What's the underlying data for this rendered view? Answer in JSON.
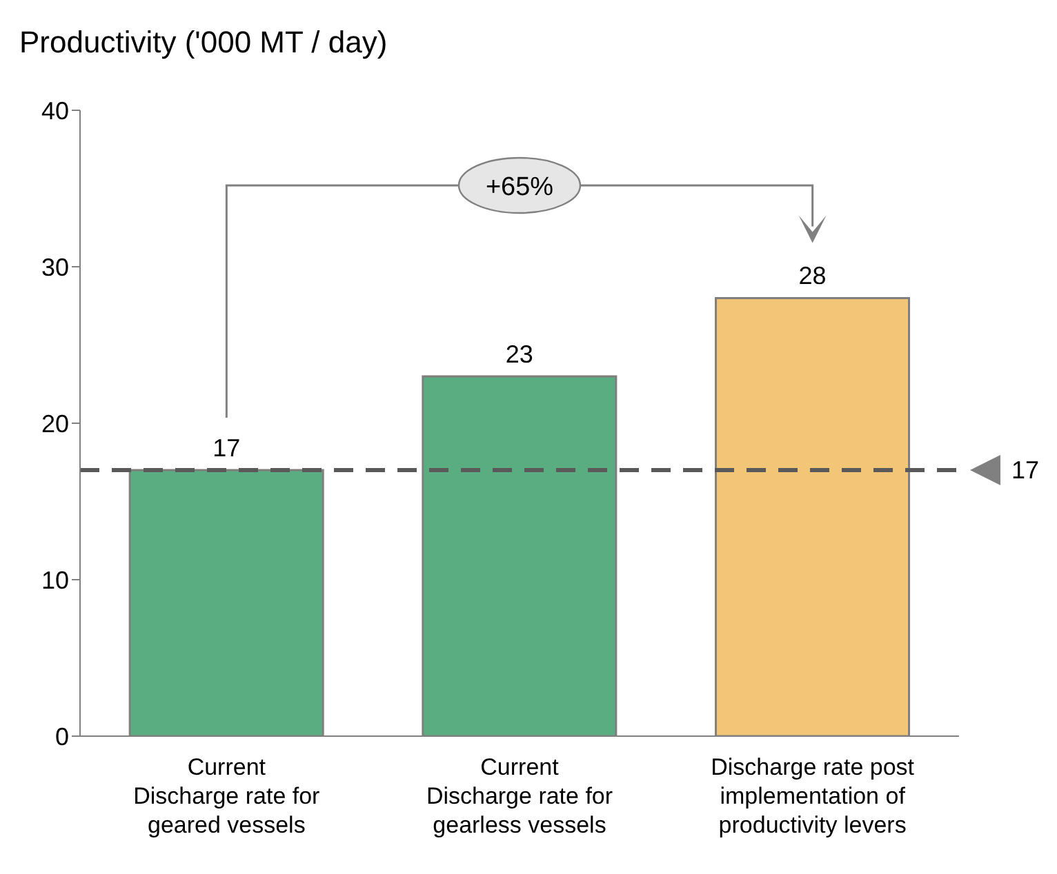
{
  "chart_data": {
    "type": "bar",
    "title": "Productivity ('000 MT / day)",
    "categories": [
      "Current\nDischarge rate for\ngeared vessels",
      "Current\nDischarge rate for\ngearless vessels",
      "Discharge rate post\nimplementation of\nproductivity levers"
    ],
    "values": [
      17,
      23,
      28
    ],
    "colors": [
      "#5aad80",
      "#5aad80",
      "#f3c677"
    ],
    "ylim": [
      0,
      40
    ],
    "yticks": [
      0,
      10,
      20,
      30,
      40
    ],
    "grid": false,
    "data_labels": true,
    "ref_lines": [
      {
        "axis": "y",
        "value": 17,
        "label": "17",
        "color": "#595959",
        "line_style": "dashed"
      }
    ],
    "annotations": [
      "+65%"
    ]
  }
}
